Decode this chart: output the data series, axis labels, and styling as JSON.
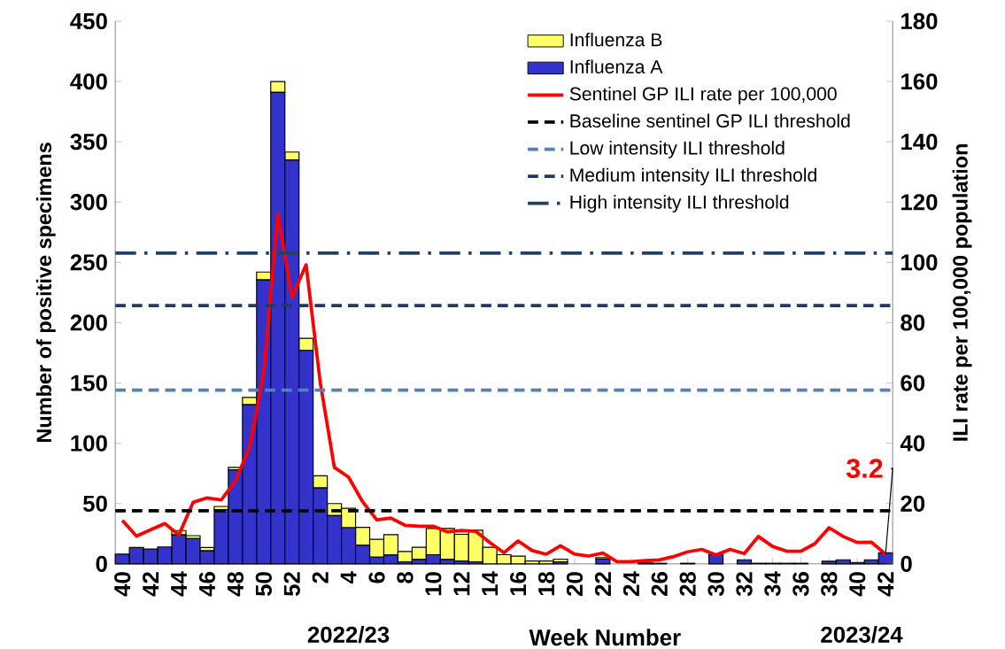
{
  "chart_data": {
    "type": "bar",
    "stacked": true,
    "xlabel": "Week Number",
    "ylabel": "Number of positive specimens",
    "y2label": "ILI rate per 100,000 population",
    "categories": [
      "40",
      null,
      "42",
      null,
      "44",
      null,
      "46",
      null,
      "48",
      null,
      "50",
      null,
      "52",
      null,
      "2",
      null,
      "4",
      null,
      "6",
      null,
      "8",
      null,
      "10",
      null,
      "12",
      null,
      "14",
      null,
      "16",
      null,
      "18",
      null,
      "20",
      null,
      "22",
      null,
      "24",
      null,
      "26",
      null,
      "28",
      null,
      "30",
      null,
      "32",
      null,
      "34",
      null,
      "36",
      null,
      "38",
      null,
      "40",
      null,
      "42"
    ],
    "series": [
      {
        "name": "Influenza A",
        "color": "#3333cc",
        "values": [
          8,
          13.5,
          12.3,
          14,
          24,
          21,
          10.8,
          45,
          78,
          132,
          235.5,
          391,
          335,
          177,
          63,
          40,
          30,
          15.4,
          5.6,
          7.3,
          1.7,
          3.7,
          7.6,
          3.7,
          2.4,
          1.7,
          0,
          0,
          0,
          0,
          0,
          1.7,
          0,
          0,
          3.9,
          0,
          0,
          1.2,
          0.5,
          0,
          0.5,
          0,
          8,
          0,
          3.4,
          0.5,
          0.5,
          0.5,
          0.5,
          0,
          2.2,
          3.4,
          1.2,
          3.4,
          9.1
        ]
      },
      {
        "name": "Influenza B",
        "color": "#ffff66",
        "values": [
          0,
          0,
          0,
          0,
          3.6,
          2.4,
          2.7,
          2.6,
          2,
          6,
          6.5,
          9,
          6.5,
          10,
          10,
          10,
          16,
          14.9,
          14.7,
          16.9,
          8.6,
          10,
          21.8,
          25.7,
          22.1,
          26.2,
          13.7,
          7.6,
          6.4,
          2.4,
          2.4,
          2.2,
          0,
          0,
          1.2,
          0,
          0,
          0,
          0,
          0,
          0,
          0,
          0,
          0,
          0,
          0,
          0,
          0,
          0,
          0,
          0,
          0,
          0,
          0,
          0
        ]
      },
      {
        "name": "Sentinel GP ILI rate per 100,000",
        "type": "line",
        "axis": "y2",
        "color": "#ff0000",
        "values": [
          14.4,
          9.2,
          11.3,
          13.4,
          9.6,
          20.4,
          21.9,
          21.2,
          27.6,
          38.6,
          63.2,
          116,
          88.4,
          99.2,
          60.2,
          32,
          28.8,
          20.6,
          14.6,
          15.2,
          12.8,
          12.5,
          12.5,
          10.6,
          11.1,
          10.8,
          7.1,
          3.7,
          7.6,
          4.4,
          3.2,
          6,
          3.2,
          2.6,
          3.6,
          0.7,
          0.7,
          1.1,
          1.3,
          2.4,
          4,
          4.8,
          3,
          4.8,
          3.4,
          9.1,
          5.8,
          4.2,
          4.2,
          6.7,
          12,
          9.1,
          7.1,
          7.2,
          3.2
        ]
      }
    ],
    "ref_lines": [
      {
        "axis": "y2",
        "value": 17.6,
        "label": "Baseline sentinel GP ILI threshold",
        "color": "#000000",
        "line_style": "dashed"
      },
      {
        "axis": "y2",
        "value": 57.6,
        "label": "Low intensity ILI threshold",
        "color": "#4f81bd",
        "line_style": "dashed"
      },
      {
        "axis": "y2",
        "value": 85.7,
        "label": "Medium intensity ILI threshold",
        "color": "#1f3864",
        "line_style": "dashed"
      },
      {
        "axis": "y2",
        "value": 103.1,
        "label": "High intensity ILI threshold",
        "color": "#243f60",
        "line_style": "dashdot"
      }
    ],
    "ylim": [
      0,
      450
    ],
    "yticks": [
      0,
      50,
      100,
      150,
      200,
      250,
      300,
      350,
      400,
      450
    ],
    "y2lim": [
      0,
      180
    ],
    "y2ticks": [
      0,
      20,
      40,
      60,
      80,
      100,
      120,
      140,
      160,
      180
    ],
    "legend": "top right",
    "annotations": [
      "2022/23",
      "2023/24",
      "3.2"
    ]
  }
}
